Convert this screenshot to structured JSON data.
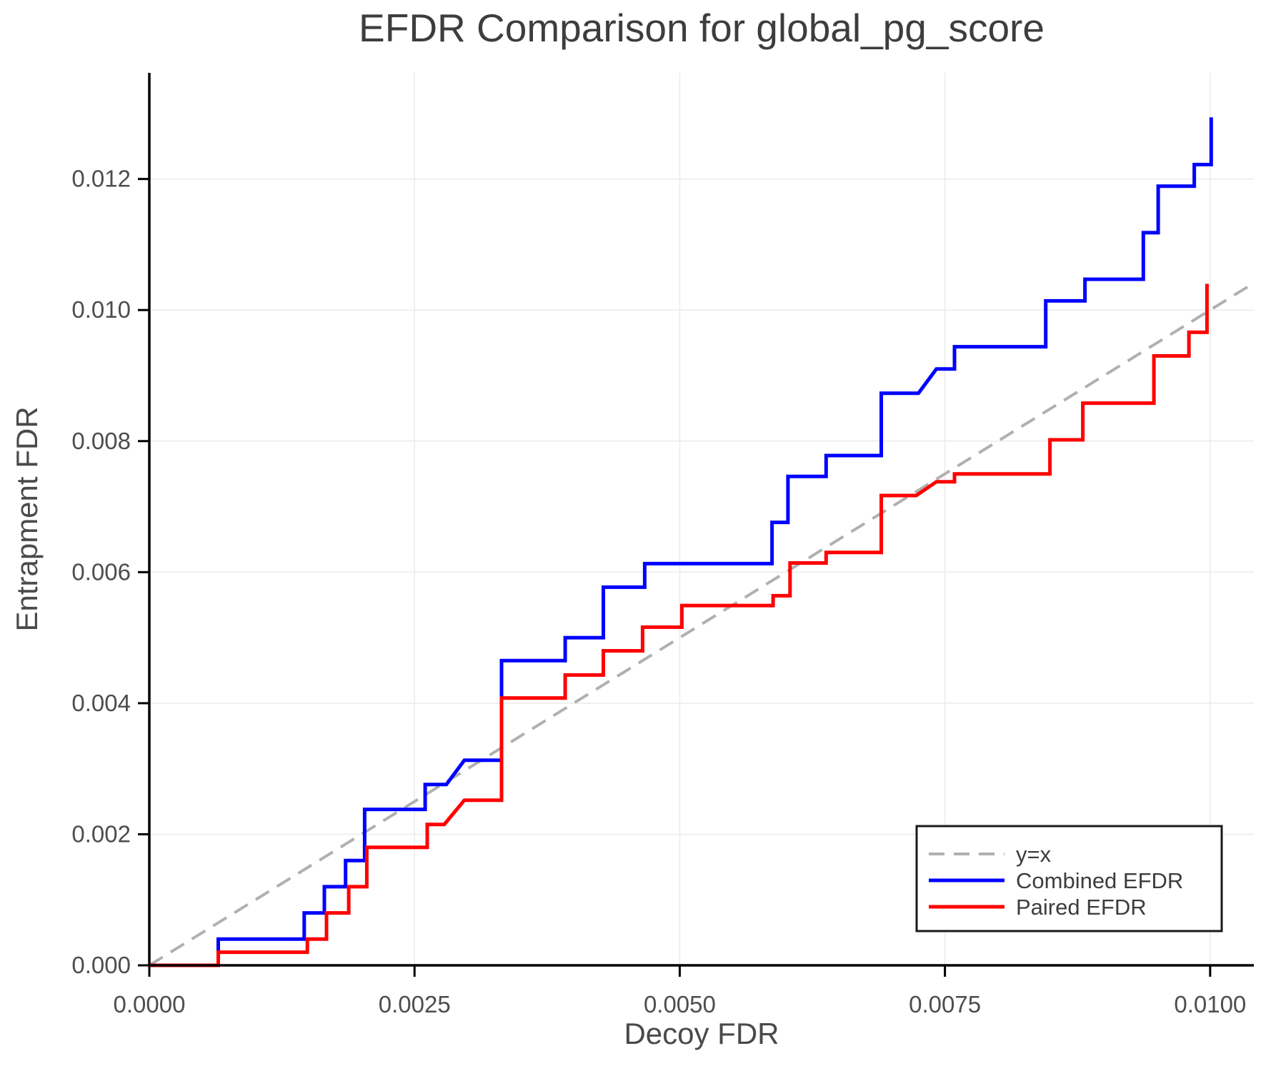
{
  "chart_data": {
    "type": "line",
    "title": "EFDR Comparison for global_pg_score",
    "xlabel": "Decoy FDR",
    "ylabel": "Entrapment FDR",
    "xlim": [
      0,
      0.010412
    ],
    "ylim": [
      0,
      0.01362
    ],
    "grid": true,
    "grid_color": "#ebebeb",
    "spine_color": "#000000",
    "tick_label_color": "#4d4d4d",
    "title_color": "#3d3d3d",
    "x_ticks": [
      {
        "value": 0.0,
        "label": "0.0000"
      },
      {
        "value": 0.0025,
        "label": "0.0025"
      },
      {
        "value": 0.005,
        "label": "0.0050"
      },
      {
        "value": 0.0075,
        "label": "0.0075"
      },
      {
        "value": 0.01,
        "label": "0.0100"
      }
    ],
    "y_ticks": [
      {
        "value": 0.0,
        "label": "0.000"
      },
      {
        "value": 0.002,
        "label": "0.002"
      },
      {
        "value": 0.004,
        "label": "0.004"
      },
      {
        "value": 0.006,
        "label": "0.006"
      },
      {
        "value": 0.008,
        "label": "0.008"
      },
      {
        "value": 0.01,
        "label": "0.010"
      },
      {
        "value": 0.012,
        "label": "0.012"
      }
    ],
    "legend": {
      "position": "lower right",
      "entries": [
        {
          "label": "y=x",
          "color": "#b0b0b0",
          "dash": true
        },
        {
          "label": "Combined EFDR",
          "color": "#0000ff",
          "dash": false
        },
        {
          "label": "Paired EFDR",
          "color": "#ff0000",
          "dash": false
        }
      ]
    },
    "series": [
      {
        "name": "y=x",
        "color": "#b0b0b0",
        "dash": true,
        "width": 4,
        "points": [
          [
            0,
            0
          ],
          [
            0.010412,
            0.010412
          ]
        ]
      },
      {
        "name": "Combined EFDR",
        "color": "#0000ff",
        "dash": false,
        "width": 5,
        "points": [
          [
            0,
            0
          ],
          [
            0.00065,
            0
          ],
          [
            0.00065,
            0.0004
          ],
          [
            0.00146,
            0.0004
          ],
          [
            0.00146,
            0.0008
          ],
          [
            0.00165,
            0.0008
          ],
          [
            0.00165,
            0.0012
          ],
          [
            0.00185,
            0.0012
          ],
          [
            0.00185,
            0.0016
          ],
          [
            0.00203,
            0.0016
          ],
          [
            0.00203,
            0.00238
          ],
          [
            0.0026,
            0.00238
          ],
          [
            0.0026,
            0.00276
          ],
          [
            0.0028,
            0.00276
          ],
          [
            0.00297,
            0.00313
          ],
          [
            0.00332,
            0.00313
          ],
          [
            0.00332,
            0.00465
          ],
          [
            0.00392,
            0.00465
          ],
          [
            0.00392,
            0.005
          ],
          [
            0.00428,
            0.005
          ],
          [
            0.00428,
            0.00577
          ],
          [
            0.00467,
            0.00577
          ],
          [
            0.00467,
            0.00613
          ],
          [
            0.00587,
            0.00613
          ],
          [
            0.00587,
            0.00676
          ],
          [
            0.00602,
            0.00676
          ],
          [
            0.00602,
            0.00746
          ],
          [
            0.00638,
            0.00746
          ],
          [
            0.00638,
            0.00778
          ],
          [
            0.0069,
            0.00778
          ],
          [
            0.0069,
            0.00873
          ],
          [
            0.00725,
            0.00873
          ],
          [
            0.00742,
            0.0091
          ],
          [
            0.00759,
            0.0091
          ],
          [
            0.00759,
            0.00944
          ],
          [
            0.00845,
            0.00944
          ],
          [
            0.00845,
            0.01014
          ],
          [
            0.00882,
            0.01014
          ],
          [
            0.00882,
            0.01047
          ],
          [
            0.00937,
            0.01047
          ],
          [
            0.00937,
            0.01118
          ],
          [
            0.00951,
            0.01118
          ],
          [
            0.00951,
            0.01189
          ],
          [
            0.00985,
            0.01189
          ],
          [
            0.00985,
            0.01222
          ],
          [
            0.01001,
            0.01222
          ],
          [
            0.01001,
            0.01294
          ]
        ]
      },
      {
        "name": "Paired EFDR",
        "color": "#ff0000",
        "dash": false,
        "width": 5,
        "points": [
          [
            0,
            0
          ],
          [
            0.00065,
            0
          ],
          [
            0.00065,
            0.0002
          ],
          [
            0.00149,
            0.0002
          ],
          [
            0.00149,
            0.0004
          ],
          [
            0.00167,
            0.0004
          ],
          [
            0.00167,
            0.0008
          ],
          [
            0.00188,
            0.0008
          ],
          [
            0.00188,
            0.0012
          ],
          [
            0.00205,
            0.0012
          ],
          [
            0.00205,
            0.0018
          ],
          [
            0.00262,
            0.0018
          ],
          [
            0.00262,
            0.00215
          ],
          [
            0.00278,
            0.00215
          ],
          [
            0.00297,
            0.00252
          ],
          [
            0.00332,
            0.00252
          ],
          [
            0.00332,
            0.00408
          ],
          [
            0.00392,
            0.00408
          ],
          [
            0.00392,
            0.00443
          ],
          [
            0.00428,
            0.00443
          ],
          [
            0.00428,
            0.0048
          ],
          [
            0.00465,
            0.0048
          ],
          [
            0.00465,
            0.00516
          ],
          [
            0.00502,
            0.00516
          ],
          [
            0.00502,
            0.00549
          ],
          [
            0.00588,
            0.00549
          ],
          [
            0.00588,
            0.00564
          ],
          [
            0.00604,
            0.00564
          ],
          [
            0.00604,
            0.00614
          ],
          [
            0.00638,
            0.00614
          ],
          [
            0.00638,
            0.0063
          ],
          [
            0.0069,
            0.0063
          ],
          [
            0.0069,
            0.00717
          ],
          [
            0.00723,
            0.00717
          ],
          [
            0.00742,
            0.00738
          ],
          [
            0.00759,
            0.00738
          ],
          [
            0.00759,
            0.0075
          ],
          [
            0.00849,
            0.0075
          ],
          [
            0.00849,
            0.00802
          ],
          [
            0.0088,
            0.00802
          ],
          [
            0.0088,
            0.00858
          ],
          [
            0.00947,
            0.00858
          ],
          [
            0.00947,
            0.0093
          ],
          [
            0.0098,
            0.0093
          ],
          [
            0.0098,
            0.00966
          ],
          [
            0.00997,
            0.00966
          ],
          [
            0.00997,
            0.0104
          ]
        ]
      }
    ]
  }
}
